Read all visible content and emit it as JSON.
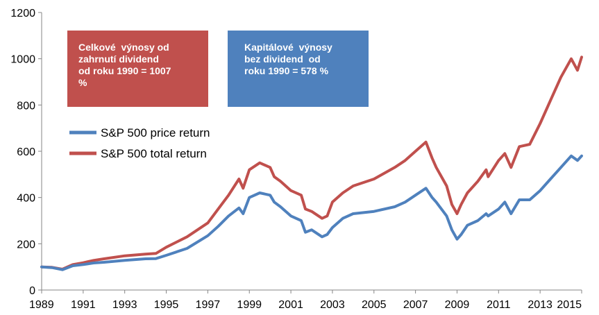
{
  "callouts": {
    "total": [
      "Celkové  výnosy od",
      "zahrnutí dividend",
      "od roku 1990 = 1007",
      "%"
    ],
    "price": [
      "Kapitálové  výnosy",
      "bez dividend  od",
      "roku 1990 = 578 %"
    ]
  },
  "colors": {
    "price": "#4f81bd",
    "total": "#c0504d"
  },
  "chart_data": {
    "type": "line",
    "title": "",
    "xlabel": "",
    "ylabel": "",
    "ylim": [
      0,
      1200
    ],
    "xlim": [
      1989,
      2015
    ],
    "yticks": [
      0,
      200,
      400,
      600,
      800,
      1000,
      1200
    ],
    "xticks": [
      "1989",
      "1991",
      "1993",
      "1995",
      "1997",
      "1999",
      "2001",
      "2003",
      "2005",
      "2007",
      "2009",
      "2011",
      "2013",
      "2015"
    ],
    "grid": false,
    "legend_position": "left",
    "series": [
      {
        "name": "S&P 500 price return",
        "color": "#4f81bd",
        "x": [
          1989.0,
          1989.5,
          1990.0,
          1990.5,
          1991.0,
          1991.5,
          1992.0,
          1993.0,
          1994.0,
          1994.5,
          1995.0,
          1996.0,
          1997.0,
          1997.5,
          1998.0,
          1998.5,
          1998.7,
          1999.0,
          1999.5,
          2000.0,
          2000.2,
          2000.5,
          2001.0,
          2001.5,
          2001.7,
          2002.0,
          2002.5,
          2002.75,
          2003.0,
          2003.5,
          2004.0,
          2005.0,
          2006.0,
          2006.5,
          2007.0,
          2007.5,
          2007.8,
          2008.0,
          2008.5,
          2008.75,
          2009.0,
          2009.2,
          2009.5,
          2010.0,
          2010.4,
          2010.5,
          2011.0,
          2011.3,
          2011.6,
          2012.0,
          2012.5,
          2013.0,
          2013.5,
          2014.0,
          2014.5,
          2014.8,
          2015.0
        ],
        "values": [
          100,
          97,
          88,
          105,
          110,
          117,
          120,
          128,
          135,
          136,
          150,
          180,
          235,
          275,
          320,
          355,
          330,
          400,
          420,
          410,
          380,
          360,
          320,
          300,
          250,
          260,
          230,
          240,
          270,
          310,
          330,
          340,
          360,
          380,
          410,
          440,
          400,
          380,
          320,
          260,
          220,
          240,
          280,
          300,
          330,
          320,
          350,
          380,
          330,
          390,
          390,
          430,
          480,
          530,
          580,
          560,
          580
        ]
      },
      {
        "name": "S&P 500 total return",
        "color": "#c0504d",
        "x": [
          1989.0,
          1989.5,
          1990.0,
          1990.5,
          1991.0,
          1991.5,
          1992.0,
          1993.0,
          1994.0,
          1994.5,
          1995.0,
          1996.0,
          1997.0,
          1997.5,
          1998.0,
          1998.5,
          1998.7,
          1999.0,
          1999.5,
          2000.0,
          2000.2,
          2000.5,
          2001.0,
          2001.5,
          2001.7,
          2002.0,
          2002.5,
          2002.75,
          2003.0,
          2003.5,
          2004.0,
          2005.0,
          2006.0,
          2006.5,
          2007.0,
          2007.5,
          2007.8,
          2008.0,
          2008.5,
          2008.75,
          2009.0,
          2009.2,
          2009.5,
          2010.0,
          2010.4,
          2010.5,
          2011.0,
          2011.3,
          2011.6,
          2012.0,
          2012.5,
          2013.0,
          2013.5,
          2014.0,
          2014.5,
          2014.8,
          2015.0
        ],
        "values": [
          100,
          98,
          90,
          110,
          118,
          128,
          135,
          148,
          155,
          158,
          185,
          230,
          290,
          350,
          410,
          480,
          440,
          520,
          550,
          530,
          490,
          470,
          430,
          410,
          350,
          340,
          310,
          320,
          380,
          420,
          450,
          480,
          530,
          560,
          600,
          640,
          570,
          530,
          450,
          370,
          330,
          370,
          420,
          470,
          520,
          490,
          560,
          590,
          530,
          620,
          630,
          720,
          820,
          920,
          1000,
          950,
          1007
        ]
      }
    ]
  }
}
